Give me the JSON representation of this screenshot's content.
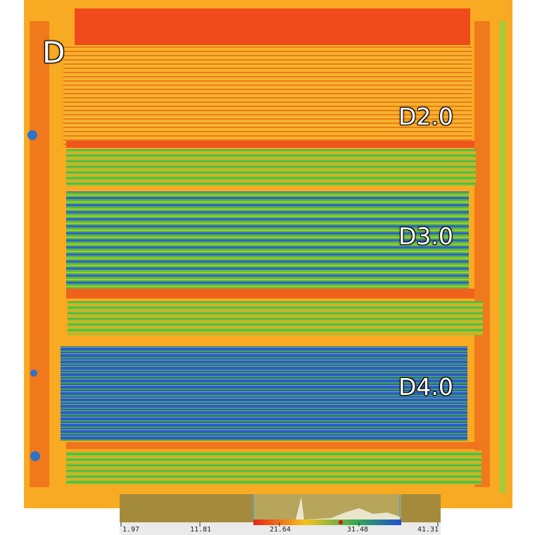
{
  "field": {
    "corner_label": "D",
    "plots": [
      {
        "label": "D2.0"
      },
      {
        "label": "D3.0"
      },
      {
        "label": "D4.0"
      }
    ]
  },
  "legend": {
    "ticks": [
      "1.97",
      "11.81",
      "21.64",
      "31.48",
      "41.31"
    ],
    "colors": {
      "low": "#e8241a",
      "mid": "#f6c21b",
      "high": "#34a853",
      "max": "#1c4fd6"
    }
  }
}
